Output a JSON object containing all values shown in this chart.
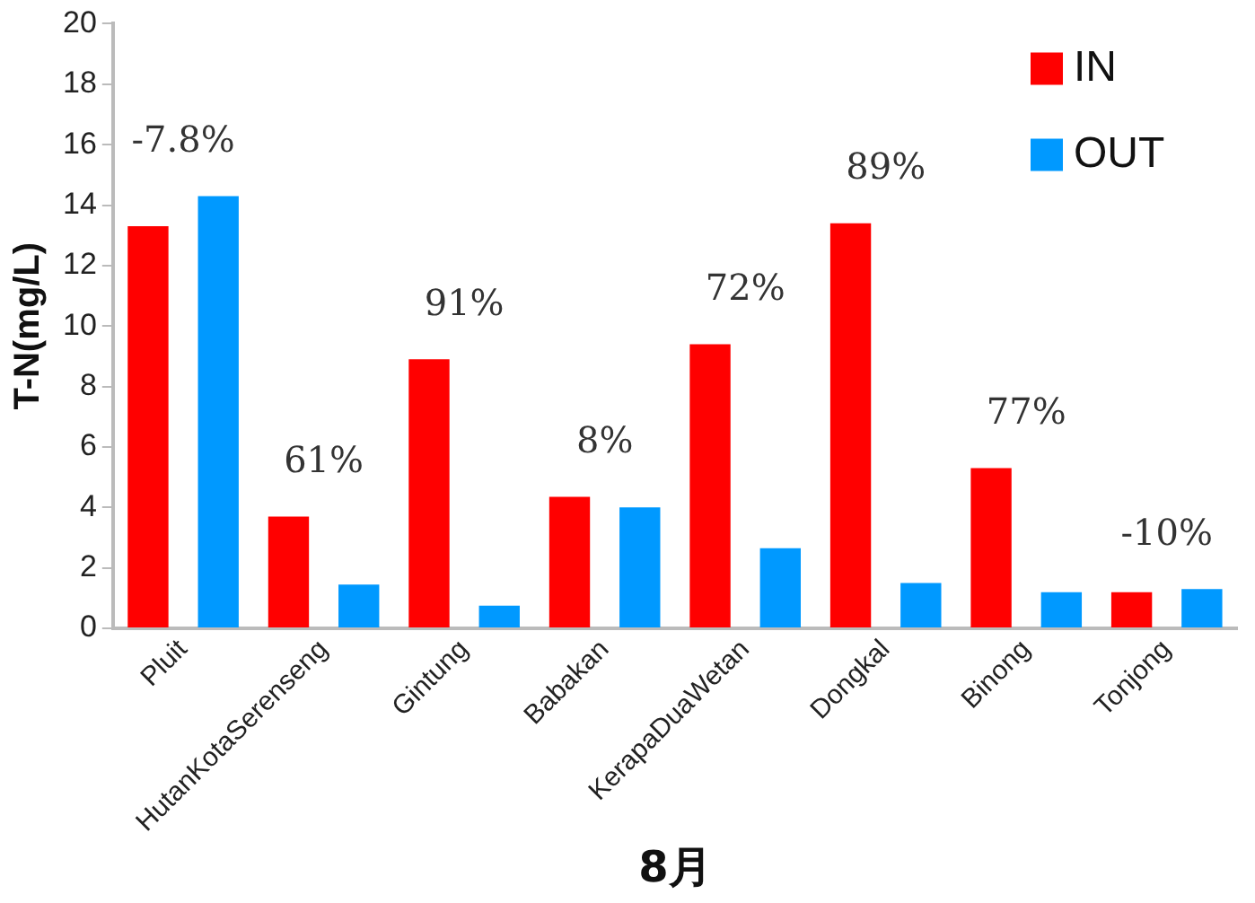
{
  "chart_data": {
    "type": "bar",
    "xlabel": "8月",
    "ylabel": "T-N(mg/L)",
    "categories": [
      "Pluit",
      "HutanKotaSerenseng",
      "Gintung",
      "Babakan",
      "KerapaDuaWetan",
      "Dongkal",
      "Binong",
      "Tonjong"
    ],
    "series": [
      {
        "name": "IN",
        "color": "#ff0000",
        "values": [
          13.3,
          3.7,
          8.9,
          4.35,
          9.4,
          13.4,
          5.3,
          1.2
        ]
      },
      {
        "name": "OUT",
        "color": "#0099ff",
        "values": [
          14.3,
          1.45,
          0.75,
          4.0,
          2.65,
          1.5,
          1.2,
          1.3
        ]
      }
    ],
    "ylim": [
      0,
      20
    ],
    "yticks": [
      0,
      2,
      4,
      6,
      8,
      10,
      12,
      14,
      16,
      18,
      20
    ],
    "grid": false,
    "legend": "top right",
    "annotations": [
      "-7.8%",
      "61%",
      "91%",
      "8%",
      "72%",
      "89%",
      "77%",
      "-10%"
    ]
  }
}
